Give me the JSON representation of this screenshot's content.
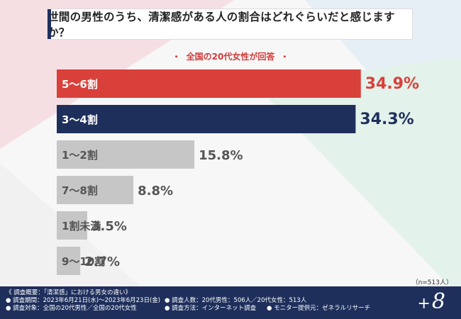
{
  "question": "世間の男性のうち、清潔感がある人の割合はどれぐらいだと感じますか？",
  "subtitle": "全国の20代女性が回答",
  "subtitle_dot": "・",
  "sample_note": "（n=513人）",
  "footer": {
    "overview": "《 調査概要：「清潔感」における男女の違い》",
    "period": "● 調査期間：2023年6月21日(水)〜2023年6月23日(金)",
    "target": "● 調査対象：全国の20代男性／全国の20代女性",
    "count": "● 調査人数：20代男性：506人／20代女性：513人",
    "method": "● 調査方法：インターネット調査",
    "provider": "● モニター提供元：ゼネラルリサーチ"
  },
  "logo": {
    "plus": "+",
    "num": "8"
  },
  "colors": {
    "top": "#d9403a",
    "second": "#1e2f5c",
    "other": "#c6c6c6",
    "footer": "#1e2f5c"
  },
  "chart_data": {
    "type": "bar",
    "orientation": "horizontal",
    "title": "世間の男性のうち、清潔感がある人の割合はどれぐらいだと感じますか？",
    "categories": [
      "5〜6割",
      "3〜4割",
      "1〜2割",
      "7〜8割",
      "1割未満",
      "9〜10割"
    ],
    "values": [
      34.9,
      34.3,
      15.8,
      8.8,
      3.5,
      2.7
    ],
    "labels": [
      "34.9%",
      "34.3%",
      "15.8%",
      "8.8%",
      "3.5%",
      "2.7%"
    ],
    "unit": "%",
    "xlim": [
      0,
      35
    ]
  }
}
